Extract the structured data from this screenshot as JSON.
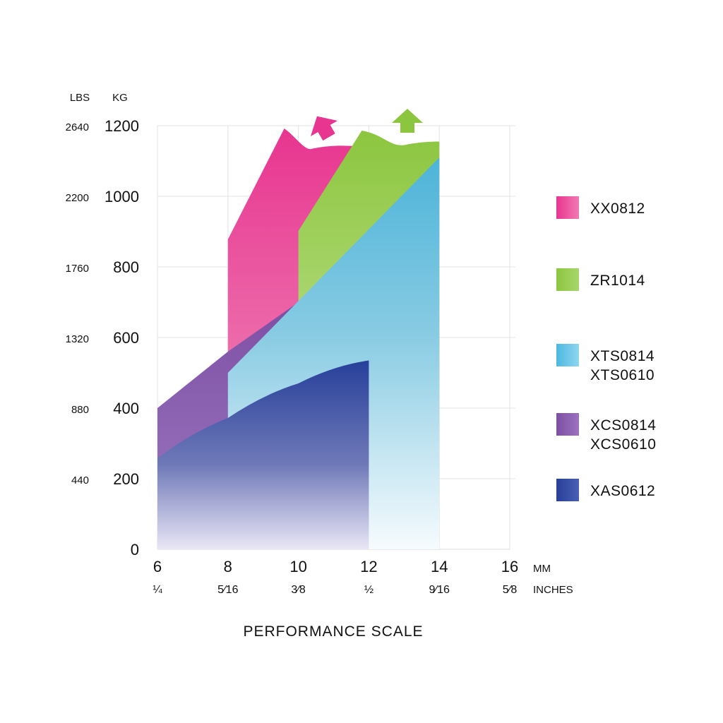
{
  "chart_data": {
    "type": "area",
    "title": "",
    "xlabel": "PERFORMANCE SCALE",
    "x_units": {
      "primary": "MM",
      "secondary": "INCHES"
    },
    "x_ticks_mm": [
      6,
      8,
      10,
      12,
      14,
      16
    ],
    "x_ticks_inches": [
      "¼",
      "5⁄16",
      "3⁄8",
      "½",
      "9⁄16",
      "5⁄8"
    ],
    "xlim": [
      6,
      16
    ],
    "y_units": {
      "left": "LBS",
      "primary": "KG"
    },
    "y_ticks_kg": [
      0,
      200,
      400,
      600,
      800,
      1000,
      1200
    ],
    "y_ticks_lbs": [
      "",
      "440",
      "880",
      "1320",
      "1760",
      "2200",
      "2640"
    ],
    "ylim": [
      0,
      1200
    ],
    "grid": true,
    "legend_position": "right",
    "series": [
      {
        "name": "XX0812",
        "color": "#e8358f",
        "x": [
          8,
          9.6,
          10.4,
          11.5,
          11.9
        ],
        "y": [
          878,
          1192,
          1135,
          1140,
          1140
        ],
        "top_arrow": true
      },
      {
        "name": "ZR1014",
        "color": "#8cc63f",
        "x": [
          10,
          11.8,
          13,
          14
        ],
        "y": [
          902,
          1186,
          1145,
          1155
        ],
        "top_arrow": true
      },
      {
        "name": "XTS0814\nXTS0610",
        "color": "#4db8e0",
        "x": [
          8,
          14
        ],
        "y": [
          500,
          1110
        ]
      },
      {
        "name": "XCS0814\nXCS0610",
        "color": "#7e4fa4",
        "x": [
          6,
          8,
          10
        ],
        "y": [
          400,
          560,
          700
        ]
      },
      {
        "name": "XAS0612",
        "color": "#27409a",
        "x": [
          6,
          8,
          10,
          12
        ],
        "y": [
          258,
          372,
          470,
          535
        ]
      }
    ]
  }
}
